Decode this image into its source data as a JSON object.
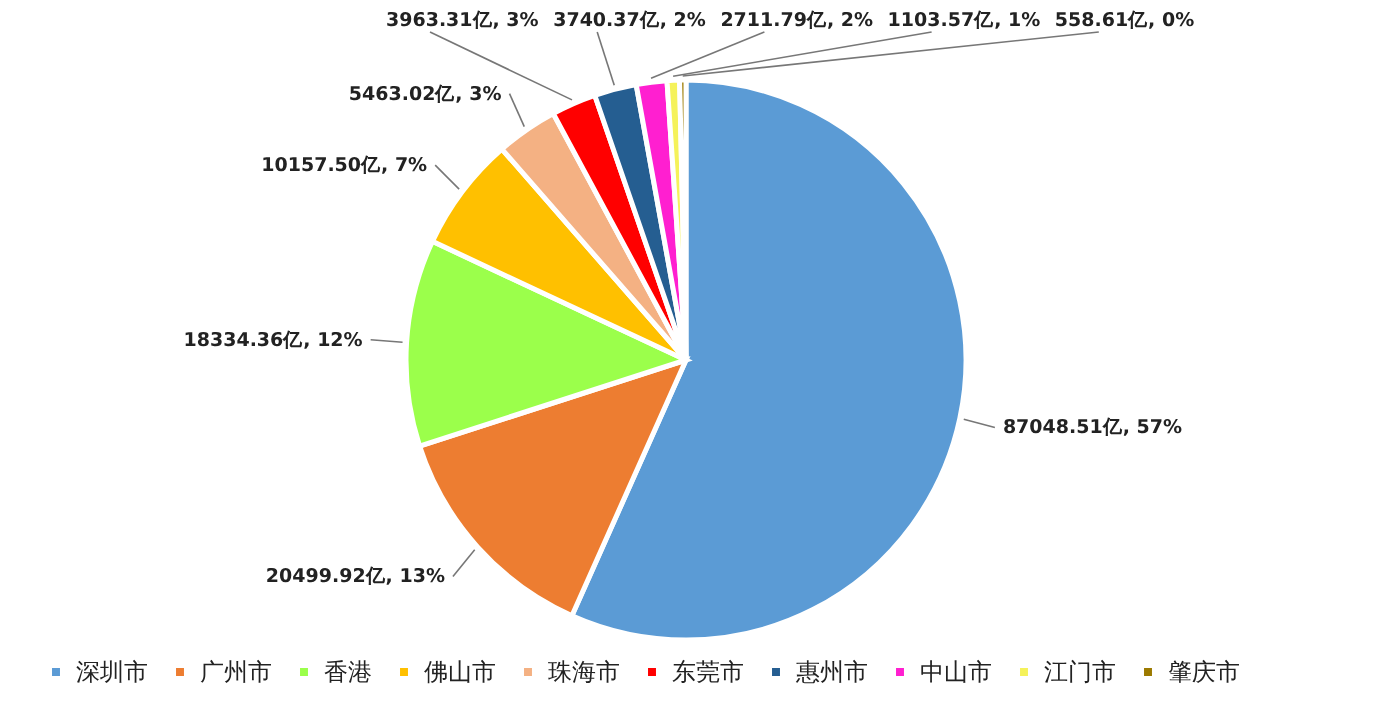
{
  "chart_data": {
    "type": "pie",
    "categories": [
      "深圳市",
      "广州市",
      "香港",
      "佛山市",
      "珠海市",
      "东莞市",
      "惠州市",
      "中山市",
      "江门市",
      "肇庆市"
    ],
    "values": [
      87048.51,
      20499.92,
      18334.36,
      10157.5,
      5463.02,
      3963.31,
      3740.37,
      2711.79,
      1103.57,
      558.61
    ],
    "colors": [
      "#5b9bd5",
      "#ed7d31",
      "#9bff4b",
      "#ffc000",
      "#f4b183",
      "#ff0000",
      "#255e91",
      "#ff1fd0",
      "#f5f25a",
      "#9c7a00"
    ],
    "value_labels": [
      "87048.51亿, 57%",
      "20499.92亿, 13%",
      "18334.36亿, 12%",
      "10157.50亿, 7%",
      "5463.02亿, 3%",
      "3963.31亿, 3%",
      "3740.37亿, 2%",
      "2711.79亿, 2%",
      "1103.57亿, 1%",
      "558.61亿, 0%"
    ],
    "legend": "bottom"
  }
}
